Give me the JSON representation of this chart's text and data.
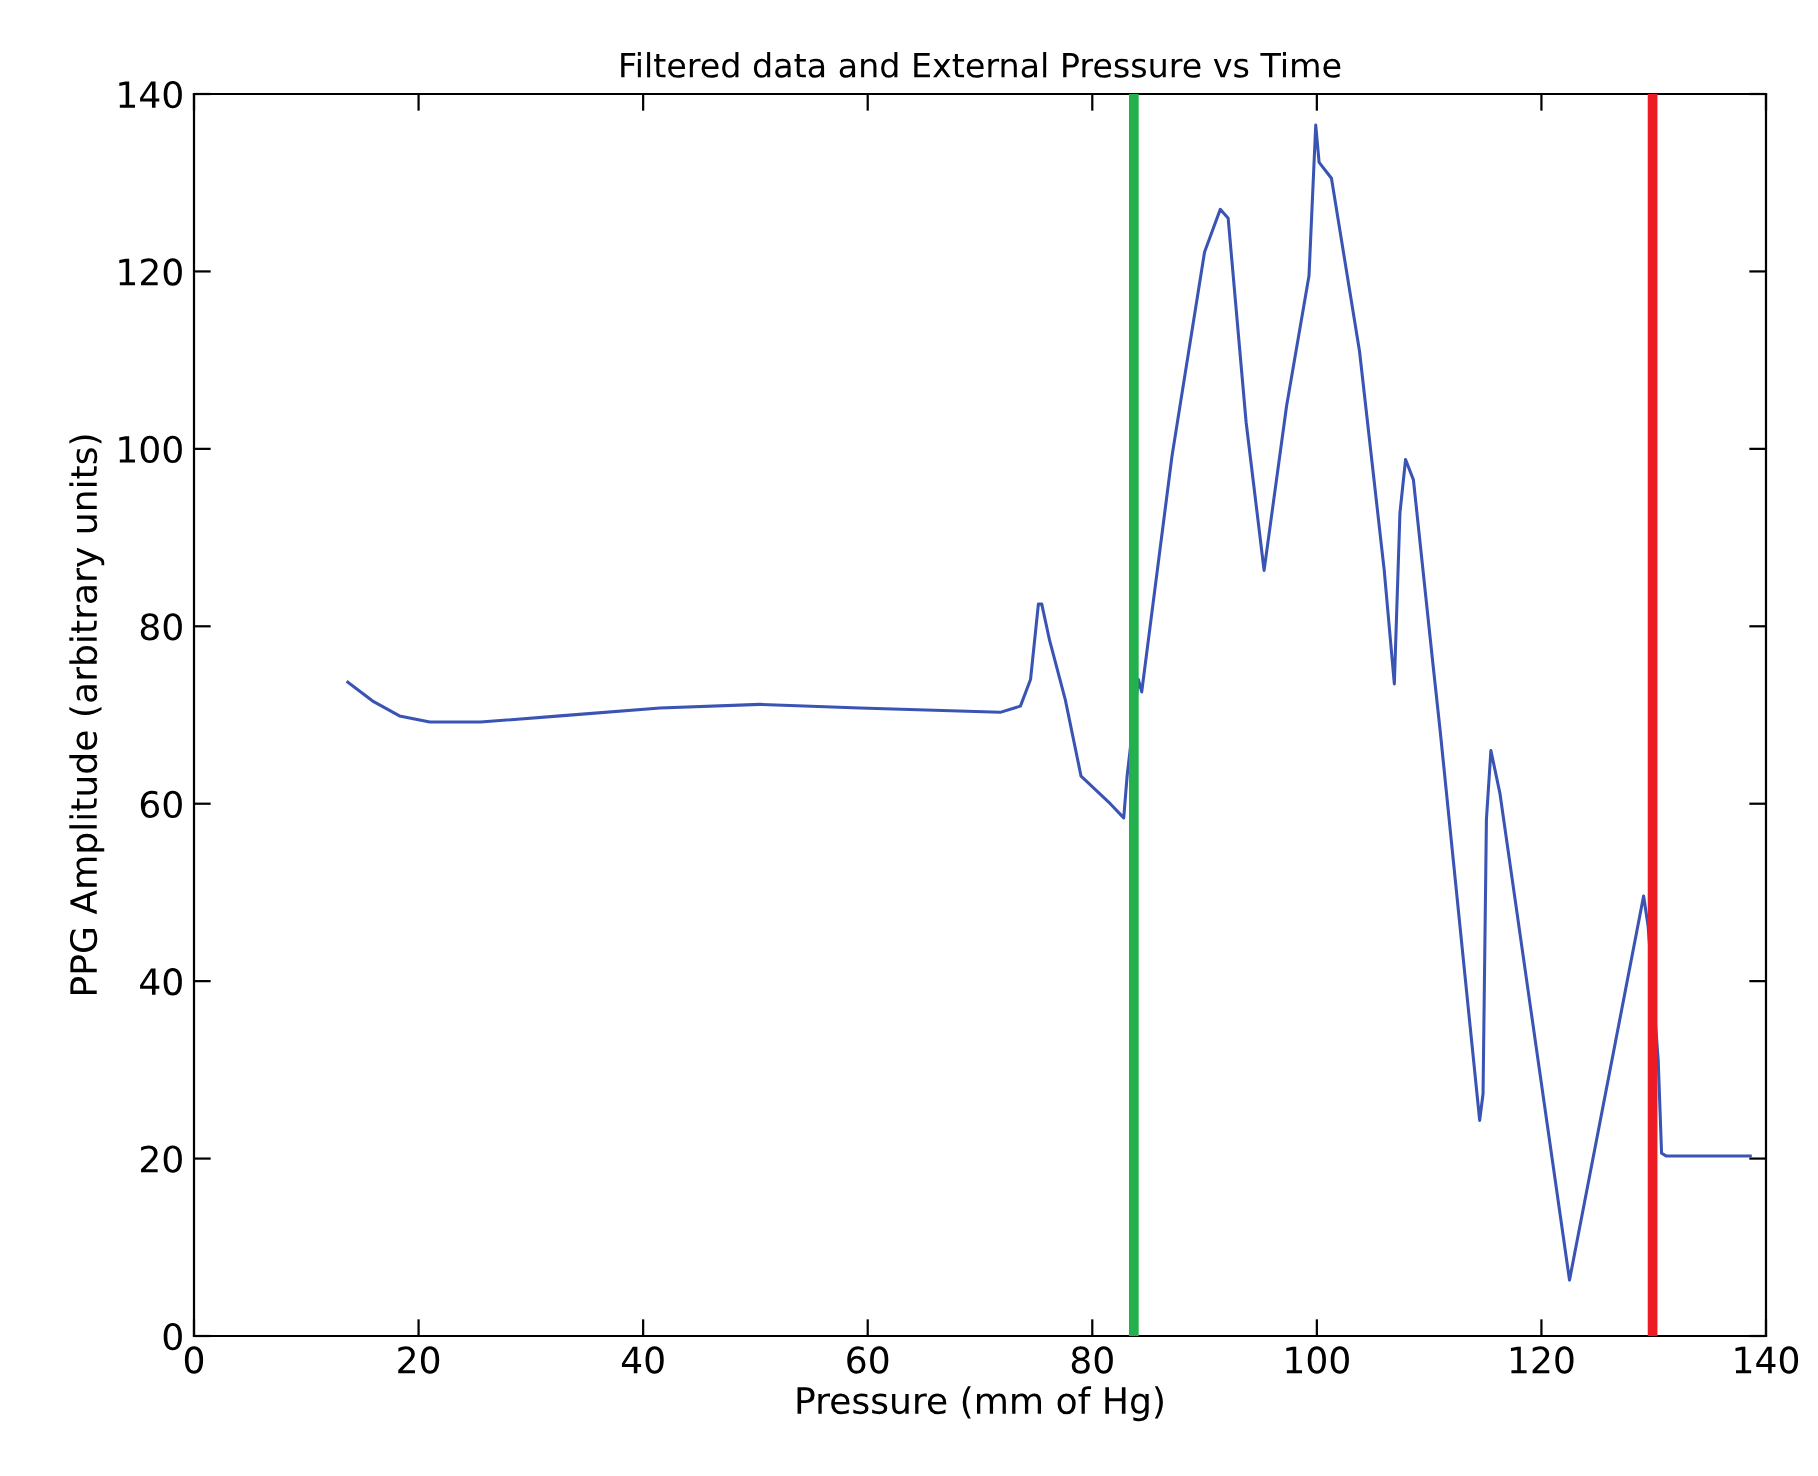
{
  "chart_data": {
    "type": "line",
    "title": "Filtered data and External Pressure vs Time",
    "xlabel": "Pressure (mm of Hg)",
    "ylabel": "PPG Amplitude (arbitrary units)",
    "xlim": [
      0,
      140
    ],
    "ylim": [
      0,
      140
    ],
    "xticks": [
      0,
      20,
      40,
      60,
      80,
      100,
      120,
      140
    ],
    "yticks": [
      0,
      20,
      40,
      60,
      80,
      100,
      120,
      140
    ],
    "grid": false,
    "legend": false,
    "marker": "none",
    "line_style": "solid",
    "series": [
      {
        "color": "#3a54b4",
        "x": [
          13.7,
          16,
          18.3,
          21,
          25.5,
          32.6,
          41.5,
          50.4,
          59.3,
          71.8,
          73.6,
          74.5,
          75.2,
          75.5,
          76.2,
          77.6,
          79,
          81.6,
          82.8,
          83.1,
          84.1,
          84.4,
          87.1,
          90,
          91.4,
          92.1,
          93.7,
          95.3,
          97.3,
          99.3,
          99.9,
          100.2,
          101.3,
          103.8,
          106,
          106.9,
          107.4,
          107.9,
          108.6,
          110.3,
          111,
          114.5,
          114.8,
          115.1,
          115.5,
          116.3,
          122.5,
          129.1,
          129.5,
          130.4,
          130.7,
          131.1,
          134.7,
          138.6
        ],
        "values": [
          73.7,
          71.5,
          69.9,
          69.2,
          69.2,
          69.9,
          70.8,
          71.2,
          70.8,
          70.3,
          71,
          74,
          82.5,
          82.5,
          78.4,
          71.7,
          63.1,
          60,
          58.4,
          63.1,
          74,
          72.6,
          99.2,
          122.2,
          127,
          126,
          103,
          86.3,
          104.8,
          119.5,
          136.5,
          132.3,
          130.5,
          111,
          86.3,
          73.5,
          92.8,
          98.8,
          96.5,
          76.2,
          68,
          24.3,
          27.3,
          58.2,
          66,
          61.2,
          6.3,
          49.6,
          46.2,
          31.1,
          20.6,
          20.3,
          20.3,
          20.3
        ]
      }
    ],
    "ref_lines": [
      {
        "axis": "x",
        "value": 83.7,
        "color": "#22b14c",
        "line_style": "solid"
      },
      {
        "axis": "x",
        "value": 129.9,
        "color": "#ed1c24",
        "line_style": "solid"
      }
    ]
  }
}
